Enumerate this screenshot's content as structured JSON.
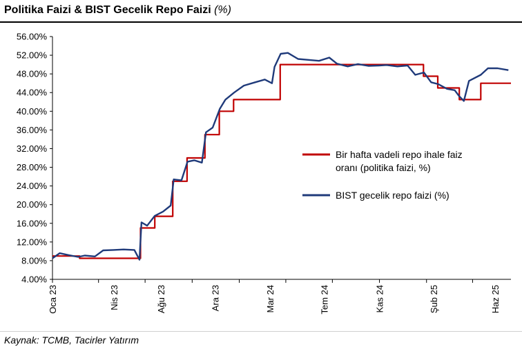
{
  "page": {
    "title": "Politika Faizi & BIST Gecelik Repo Faizi",
    "title_unit": "(%)",
    "source": "Kaynak: TCMB, Tacirler Yatırım"
  },
  "chart_data": {
    "type": "line",
    "title": "Politika Faizi & BIST Gecelik Repo Faizi (%)",
    "xlabel": "",
    "ylabel": "",
    "ylim": [
      4,
      56
    ],
    "yticks": [
      4,
      8,
      12,
      16,
      20,
      24,
      28,
      32,
      36,
      40,
      44,
      48,
      52,
      56
    ],
    "ytick_labels": [
      "4.00%",
      "8.00%",
      "12.00%",
      "16.00%",
      "20.00%",
      "24.00%",
      "28.00%",
      "32.00%",
      "36.00%",
      "40.00%",
      "44.00%",
      "48.00%",
      "52.00%",
      "56.00%"
    ],
    "xlim": [
      "2023-01-01",
      "2025-06-15"
    ],
    "xticks": [
      "2023-01-01",
      "2023-04-01",
      "2023-07-01",
      "2023-10-01",
      "2024-01-01",
      "2024-04-01",
      "2024-07-01",
      "2024-10-01",
      "2025-01-01",
      "2025-04-01"
    ],
    "xtick_labels": [
      "Oca 23",
      "Nis 23",
      "Ağu 23",
      "Ara 23",
      "Mar 24",
      "Tem 24",
      "Kas 24",
      "Şub 25",
      "Haz 25"
    ],
    "xtick_label_dates": [
      "2023-01-01",
      "2023-05-01",
      "2023-08-01",
      "2023-11-15",
      "2024-03-01",
      "2024-06-15",
      "2024-10-01",
      "2025-01-15",
      "2025-05-15"
    ],
    "grid": false,
    "legend_position": "right",
    "series": [
      {
        "name": "Bir hafta vadeli repo ihale faiz oranı (politika faizi, %)",
        "color": "#c00000",
        "step": true,
        "x": [
          "2023-01-01",
          "2023-02-23",
          "2023-06-22",
          "2023-07-20",
          "2023-08-24",
          "2023-09-21",
          "2023-10-26",
          "2023-11-23",
          "2023-12-21",
          "2024-03-21",
          "2024-12-26",
          "2025-01-23",
          "2025-03-06",
          "2025-04-17",
          "2025-06-15"
        ],
        "y": [
          9,
          8.5,
          15,
          17.5,
          25,
          30,
          35,
          40,
          42.5,
          50,
          47.5,
          45,
          42.5,
          46,
          46
        ]
      },
      {
        "name": "BIST gecelik repo faizi (%)",
        "color": "#1f3a7a",
        "x": [
          "2023-01-01",
          "2023-01-15",
          "2023-02-01",
          "2023-02-20",
          "2023-03-05",
          "2023-03-25",
          "2023-04-10",
          "2023-04-30",
          "2023-05-20",
          "2023-06-10",
          "2023-06-20",
          "2023-06-24",
          "2023-07-05",
          "2023-07-20",
          "2023-08-05",
          "2023-08-20",
          "2023-08-26",
          "2023-09-10",
          "2023-09-22",
          "2023-10-05",
          "2023-10-20",
          "2023-10-28",
          "2023-11-10",
          "2023-11-24",
          "2023-12-05",
          "2023-12-22",
          "2024-01-10",
          "2024-02-01",
          "2024-02-20",
          "2024-03-05",
          "2024-03-10",
          "2024-03-22",
          "2024-04-05",
          "2024-04-25",
          "2024-05-15",
          "2024-06-05",
          "2024-06-25",
          "2024-07-10",
          "2024-07-31",
          "2024-08-20",
          "2024-09-10",
          "2024-09-30",
          "2024-10-15",
          "2024-11-05",
          "2024-11-25",
          "2024-12-10",
          "2024-12-27",
          "2025-01-10",
          "2025-01-24",
          "2025-02-10",
          "2025-02-25",
          "2025-03-06",
          "2025-03-15",
          "2025-03-25",
          "2025-04-17",
          "2025-05-01",
          "2025-05-20",
          "2025-06-10"
        ],
        "y": [
          8.5,
          9.6,
          9.2,
          8.8,
          9.1,
          8.9,
          10.2,
          10.3,
          10.4,
          10.3,
          8.2,
          16.2,
          15.5,
          17.6,
          18.5,
          19.8,
          25.4,
          25.2,
          29.2,
          29.5,
          29.0,
          35.5,
          36.5,
          40.5,
          42.5,
          44.0,
          45.5,
          46.2,
          46.8,
          46.0,
          49.5,
          52.3,
          52.5,
          51.2,
          51.0,
          50.8,
          51.5,
          50.2,
          49.6,
          50.1,
          49.7,
          49.8,
          49.9,
          49.6,
          49.8,
          47.8,
          48.3,
          46.2,
          45.8,
          44.8,
          44.5,
          43.2,
          42.2,
          46.5,
          47.8,
          49.2,
          49.2,
          48.8
        ]
      }
    ]
  }
}
